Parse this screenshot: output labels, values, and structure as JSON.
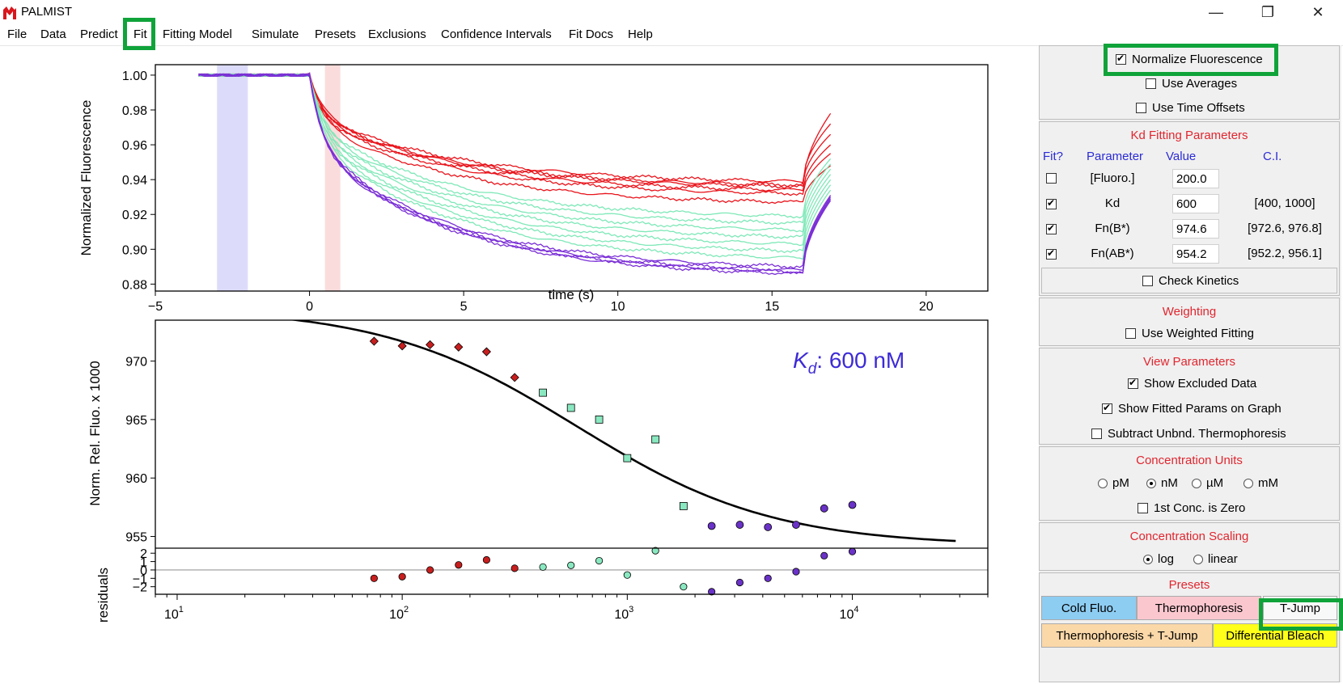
{
  "window": {
    "title": "PALMIST",
    "minimize": "—",
    "restore": "❐",
    "close": "✕"
  },
  "menu": [
    "File",
    "Data",
    "Predict",
    "Fit",
    "Fitting Model",
    "Simulate",
    "Presets",
    "Exclusions",
    "Confidence Intervals",
    "Fit Docs",
    "Help"
  ],
  "trace_plot": {
    "ylabel": "Normalized Fluorescence",
    "xlabel": "time (s)",
    "xticks": [
      "−5",
      "0",
      "5",
      "10",
      "15",
      "20"
    ],
    "yticks": [
      "1.00",
      "0.98",
      "0.96",
      "0.94",
      "0.92",
      "0.90",
      "0.88"
    ]
  },
  "fit_plot": {
    "ylabel": "Norm. Rel. Fluo. x 1000",
    "yticks": [
      "970",
      "965",
      "960",
      "955"
    ],
    "kd_label_sym": "K",
    "kd_label_sub": "d",
    "kd_label_value": ": 600 nM"
  },
  "resid_plot": {
    "ylabel": "residuals",
    "yticks": [
      "2",
      "1",
      "0",
      "−1",
      "−2"
    ],
    "xtick_base": "10",
    "xtick_exps": [
      "1",
      "2",
      "3",
      "4"
    ]
  },
  "chart_data": [
    {
      "type": "line",
      "title": "",
      "xlabel": "time (s)",
      "ylabel": "Normalized Fluorescence",
      "xlim": [
        -5,
        22
      ],
      "ylim": [
        0.876,
        1.006
      ],
      "shaded_regions": [
        {
          "x": [
            -3,
            -2
          ],
          "color": "#dcdcfa"
        },
        {
          "x": [
            0.5,
            1.0
          ],
          "color": "#fbdcdc"
        }
      ],
      "series": [
        {
          "color": "#e8141c",
          "final": 0.936,
          "end": 0.978
        },
        {
          "color": "#e8141c",
          "final": 0.939,
          "end": 0.972
        },
        {
          "color": "#e8141c",
          "final": 0.937,
          "end": 0.966
        },
        {
          "color": "#e8141c",
          "final": 0.934,
          "end": 0.96
        },
        {
          "color": "#e8141c",
          "final": 0.932,
          "end": 0.955
        },
        {
          "color": "#e8141c",
          "final": 0.927,
          "end": 0.948
        },
        {
          "color": "#7fe8b8",
          "final": 0.919,
          "end": 0.952
        },
        {
          "color": "#7fe8b8",
          "final": 0.915,
          "end": 0.949
        },
        {
          "color": "#7fe8b8",
          "final": 0.911,
          "end": 0.946
        },
        {
          "color": "#7fe8b8",
          "final": 0.907,
          "end": 0.943
        },
        {
          "color": "#7fe8b8",
          "final": 0.903,
          "end": 0.94
        },
        {
          "color": "#7fe8b8",
          "final": 0.899,
          "end": 0.937
        },
        {
          "color": "#7fe8b8",
          "final": 0.895,
          "end": 0.934
        },
        {
          "color": "#7b2fd6",
          "final": 0.89,
          "end": 0.931
        },
        {
          "color": "#7b2fd6",
          "final": 0.888,
          "end": 0.93
        },
        {
          "color": "#7b2fd6",
          "final": 0.887,
          "end": 0.929
        },
        {
          "color": "#7b2fd6",
          "final": 0.886,
          "end": 0.928
        }
      ]
    },
    {
      "type": "scatter",
      "title": "",
      "xlabel": "",
      "ylabel": "Norm. Rel. Fluo. x 1000",
      "x_scale": "log",
      "xlim": [
        8,
        40000
      ],
      "ylim": [
        954,
        973.5
      ],
      "fit_curve": {
        "kd": 600,
        "fn_b": 974.6,
        "fn_ab": 954.2,
        "color": "#000000"
      },
      "points": [
        {
          "x": 75,
          "y": 971.7,
          "marker": "diamond",
          "color": "#c81e1e"
        },
        {
          "x": 100,
          "y": 971.3,
          "marker": "diamond",
          "color": "#c81e1e"
        },
        {
          "x": 133,
          "y": 971.4,
          "marker": "diamond",
          "color": "#c81e1e"
        },
        {
          "x": 178,
          "y": 971.2,
          "marker": "diamond",
          "color": "#c81e1e"
        },
        {
          "x": 237,
          "y": 970.8,
          "marker": "diamond",
          "color": "#c81e1e"
        },
        {
          "x": 316,
          "y": 968.6,
          "marker": "diamond",
          "color": "#c81e1e"
        },
        {
          "x": 422,
          "y": 967.3,
          "marker": "square",
          "color": "#8ae8c0"
        },
        {
          "x": 562,
          "y": 966.0,
          "marker": "square",
          "color": "#8ae8c0"
        },
        {
          "x": 750,
          "y": 965.0,
          "marker": "square",
          "color": "#8ae8c0"
        },
        {
          "x": 1000,
          "y": 961.7,
          "marker": "square",
          "color": "#8ae8c0"
        },
        {
          "x": 1334,
          "y": 963.3,
          "marker": "square",
          "color": "#8ae8c0"
        },
        {
          "x": 1778,
          "y": 957.6,
          "marker": "square",
          "color": "#8ae8c0"
        },
        {
          "x": 2371,
          "y": 955.9,
          "marker": "circle",
          "color": "#6a32c8"
        },
        {
          "x": 3162,
          "y": 956.0,
          "marker": "circle",
          "color": "#6a32c8"
        },
        {
          "x": 4217,
          "y": 955.8,
          "marker": "circle",
          "color": "#6a32c8"
        },
        {
          "x": 5623,
          "y": 956.0,
          "marker": "circle",
          "color": "#6a32c8"
        },
        {
          "x": 7499,
          "y": 957.4,
          "marker": "circle",
          "color": "#6a32c8"
        },
        {
          "x": 10000,
          "y": 957.7,
          "marker": "circle",
          "color": "#6a32c8"
        }
      ]
    },
    {
      "type": "scatter",
      "title": "",
      "xlabel": "",
      "ylabel": "residuals",
      "x_scale": "log",
      "xlim": [
        8,
        40000
      ],
      "ylim": [
        -2.9,
        2.6
      ],
      "zero_line": true,
      "points": [
        {
          "x": 75,
          "y": -1.0,
          "color": "#c81e1e"
        },
        {
          "x": 100,
          "y": -0.8,
          "color": "#c81e1e"
        },
        {
          "x": 133,
          "y": 0.0,
          "color": "#c81e1e"
        },
        {
          "x": 178,
          "y": 0.6,
          "color": "#c81e1e"
        },
        {
          "x": 237,
          "y": 1.2,
          "color": "#c81e1e"
        },
        {
          "x": 316,
          "y": 0.2,
          "color": "#c81e1e"
        },
        {
          "x": 422,
          "y": 0.35,
          "color": "#8ae8c0"
        },
        {
          "x": 562,
          "y": 0.55,
          "color": "#8ae8c0"
        },
        {
          "x": 750,
          "y": 1.1,
          "color": "#8ae8c0"
        },
        {
          "x": 1000,
          "y": -0.6,
          "color": "#8ae8c0"
        },
        {
          "x": 1334,
          "y": 2.3,
          "color": "#8ae8c0"
        },
        {
          "x": 1778,
          "y": -2.0,
          "color": "#8ae8c0"
        },
        {
          "x": 2371,
          "y": -2.6,
          "color": "#6a32c8"
        },
        {
          "x": 3162,
          "y": -1.5,
          "color": "#6a32c8"
        },
        {
          "x": 4217,
          "y": -1.0,
          "color": "#6a32c8"
        },
        {
          "x": 5623,
          "y": -0.2,
          "color": "#6a32c8"
        },
        {
          "x": 7499,
          "y": 1.7,
          "color": "#6a32c8"
        },
        {
          "x": 10000,
          "y": 2.2,
          "color": "#6a32c8"
        }
      ]
    }
  ],
  "panel": {
    "options": {
      "normalize": "Normalize Fluorescence",
      "use_averages": "Use Averages",
      "time_offsets": "Use Time Offsets"
    },
    "kd": {
      "title": "Kd Fitting Parameters",
      "headers": {
        "fit": "Fit?",
        "param": "Parameter",
        "value": "Value",
        "ci": "C.I."
      },
      "rows": [
        {
          "name": "[Fluoro.]",
          "value": "200.0",
          "ci": ""
        },
        {
          "name": "Kd",
          "value": "600",
          "ci": "[400, 1000]"
        },
        {
          "name": "Fn(B*)",
          "value": "974.6",
          "ci": "[972.6, 976.8]"
        },
        {
          "name": "Fn(AB*)",
          "value": "954.2",
          "ci": "[952.2, 956.1]"
        }
      ],
      "check_kinetics": "Check Kinetics"
    },
    "weighting": {
      "title": "Weighting",
      "weighted": "Use Weighted Fitting"
    },
    "view": {
      "title": "View Parameters",
      "excluded": "Show Excluded Data",
      "fitted": "Show Fitted Params on Graph",
      "subtract": "Subtract Unbnd. Thermophoresis"
    },
    "units": {
      "title": "Concentration Units",
      "options": [
        "pM",
        "nM",
        "µM",
        "mM"
      ],
      "first_zero": "1st Conc. is Zero"
    },
    "scaling": {
      "title": "Concentration Scaling",
      "options": [
        "log",
        "linear"
      ]
    },
    "presets": {
      "title": "Presets",
      "cold": "Cold Fluo.",
      "thermo": "Thermophoresis",
      "tjump": "T-Jump",
      "thermo_tjump": "Thermophoresis + T-Jump",
      "bleach": "Differential Bleach"
    }
  },
  "colors": {
    "accent_red": "#e0262f",
    "header_blue": "#2b2bd6",
    "highlight_green": "#0fa33a",
    "preset_cold": "#8ecdf2",
    "preset_thermo": "#fbc7cf",
    "preset_thermo_tjump": "#fbd8a8",
    "preset_bleach": "#ffff1a",
    "kd_label": "#3d2bd6"
  }
}
